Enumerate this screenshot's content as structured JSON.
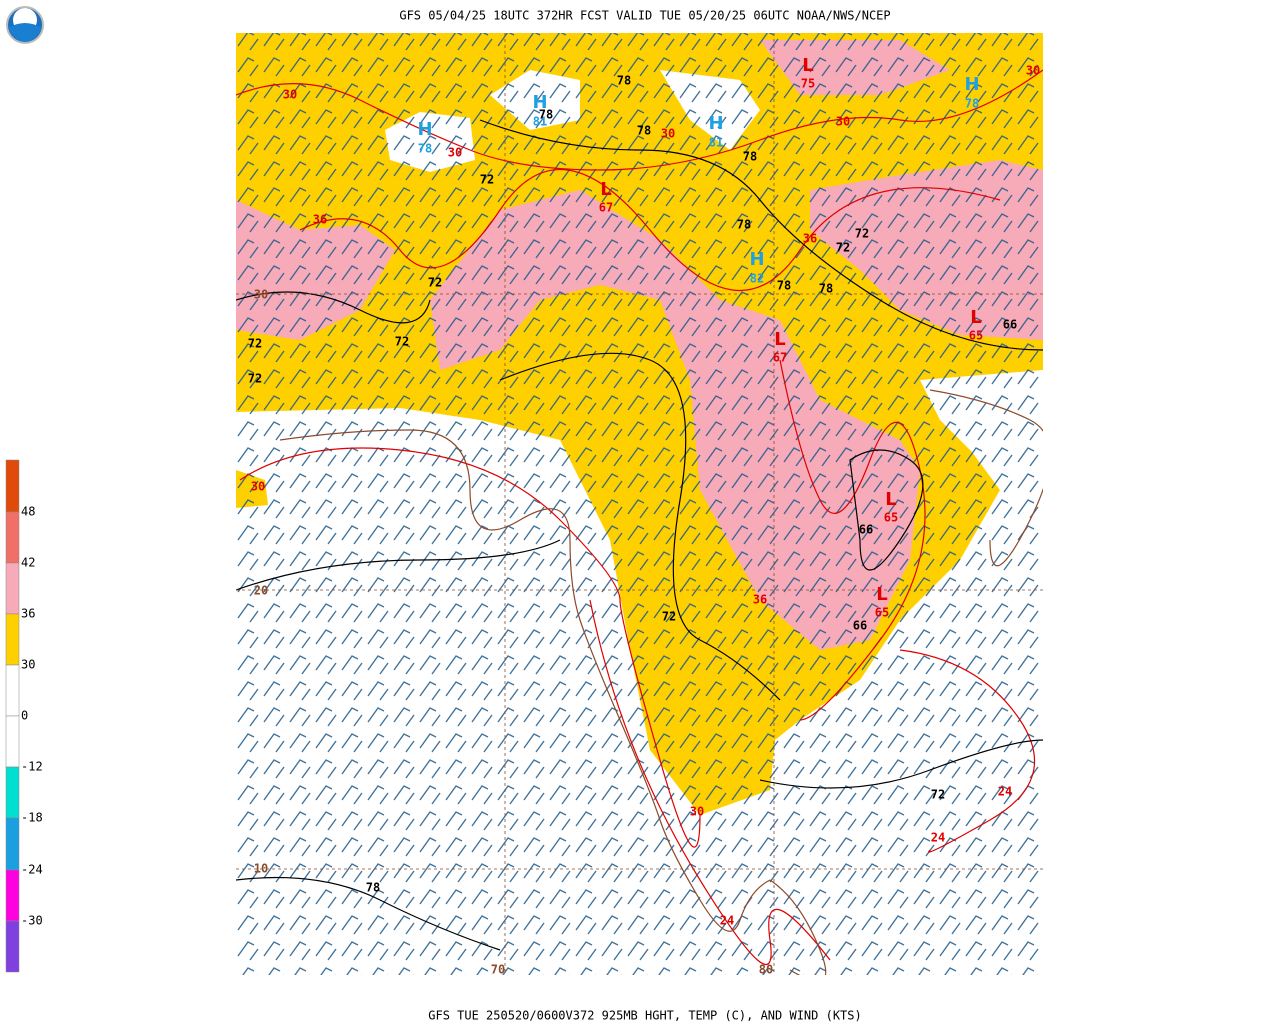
{
  "header": {
    "title": "GFS 05/04/25 18UTC 372HR FCST VALID TUE 05/20/25 06UTC NOAA/NWS/NCEP"
  },
  "footer": {
    "caption": "GFS TUE 250520/0600V372 925MB HGHT, TEMP (C), AND WIND (KTS)"
  },
  "colorbar": {
    "labels": [
      "48",
      "42",
      "36",
      "30",
      "0",
      "-12",
      "-18",
      "-24",
      "-30"
    ]
  },
  "map": {
    "highs": [
      {
        "mark": "H",
        "value": "78"
      },
      {
        "mark": "H",
        "value": "81"
      },
      {
        "mark": "H",
        "value": "81"
      },
      {
        "mark": "H",
        "value": "82"
      },
      {
        "mark": "H",
        "value": "78"
      }
    ],
    "lows": [
      {
        "mark": "L",
        "value": "75"
      },
      {
        "mark": "L",
        "value": "67"
      },
      {
        "mark": "L",
        "value": "67"
      },
      {
        "mark": "L",
        "value": "65"
      },
      {
        "mark": "L",
        "value": "65"
      },
      {
        "mark": "L",
        "value": "65"
      }
    ],
    "height_labels": [
      "78",
      "78",
      "78",
      "78",
      "72",
      "78",
      "72",
      "72",
      "78",
      "78",
      "72",
      "72",
      "72",
      "72",
      "66",
      "66",
      "66",
      "72",
      "72",
      "78"
    ],
    "temp_labels": [
      "30",
      "30",
      "30",
      "30",
      "30",
      "36",
      "36",
      "30",
      "36",
      "30",
      "24",
      "24",
      "24"
    ],
    "grid_labels": [
      "30",
      "20",
      "10",
      "70",
      "80"
    ]
  }
}
